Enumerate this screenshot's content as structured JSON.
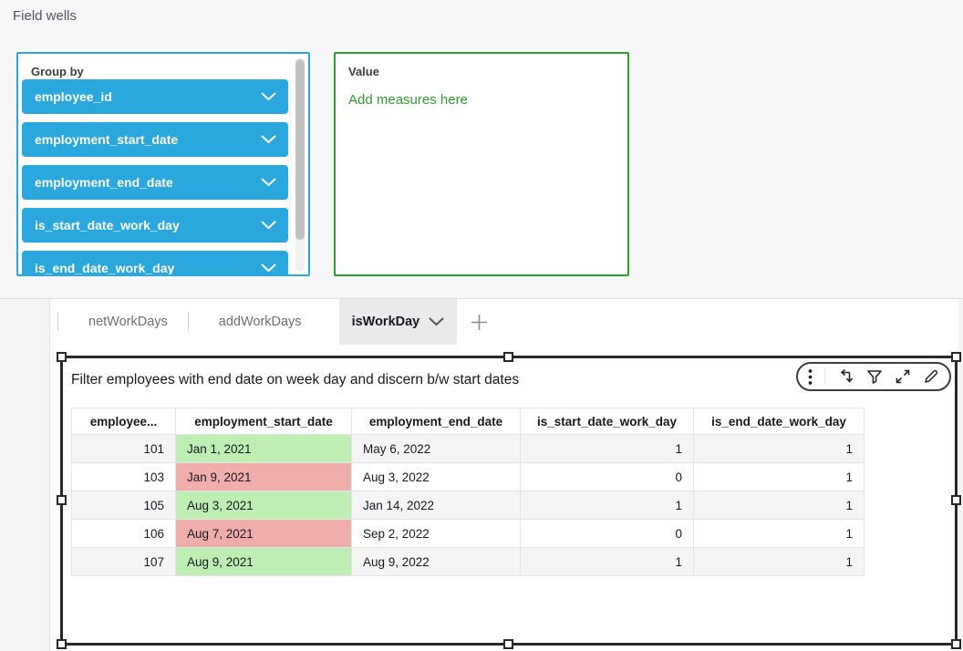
{
  "field_wells": {
    "title": "Field wells",
    "group_by": {
      "label": "Group by",
      "fields": [
        "employee_id",
        "employment_start_date",
        "employment_end_date",
        "is_start_date_work_day",
        "is_end_date_work_day"
      ]
    },
    "value": {
      "label": "Value",
      "empty_text": "Add measures here"
    }
  },
  "sheet_tabs": {
    "tabs": [
      {
        "label": "netWorkDays",
        "active": false
      },
      {
        "label": "addWorkDays",
        "active": false
      },
      {
        "label": "isWorkDay",
        "active": true
      }
    ],
    "add_tab_icon": "plus-icon"
  },
  "visual": {
    "title": "Filter employees with end date on week day and discern b/w start dates",
    "menu_icons": [
      "kebab-menu-icon",
      "sort-icon",
      "filter-funnel-icon",
      "maximize-icon",
      "edit-pencil-icon"
    ],
    "table": {
      "columns": [
        "employee...",
        "employment_start_date",
        "employment_end_date",
        "is_start_date_work_day",
        "is_end_date_work_day"
      ],
      "rows": [
        {
          "cells": [
            "101",
            "Jan 1, 2021",
            "May 6, 2022",
            "1",
            "1"
          ],
          "start_date_highlight": "green"
        },
        {
          "cells": [
            "103",
            "Jan 9, 2021",
            "Aug 3, 2022",
            "0",
            "1"
          ],
          "start_date_highlight": "red"
        },
        {
          "cells": [
            "105",
            "Aug 3, 2021",
            "Jan 14, 2022",
            "1",
            "1"
          ],
          "start_date_highlight": "green"
        },
        {
          "cells": [
            "106",
            "Aug 7, 2021",
            "Sep 2, 2022",
            "0",
            "1"
          ],
          "start_date_highlight": "red"
        },
        {
          "cells": [
            "107",
            "Aug 9, 2021",
            "Aug 9, 2022",
            "1",
            "1"
          ],
          "start_date_highlight": "green"
        }
      ]
    }
  },
  "colors": {
    "field_pill_blue": "#2aa7dc",
    "group_by_border": "#2aa7dc",
    "value_border": "#2ea02c",
    "value_text": "#2ea02c",
    "highlight_green": "#bdefb3",
    "highlight_red": "#f0aeaa",
    "row_alt": "#f5f5f5",
    "selection_border": "#26282a",
    "active_tab_bg": "#eaeaea"
  }
}
